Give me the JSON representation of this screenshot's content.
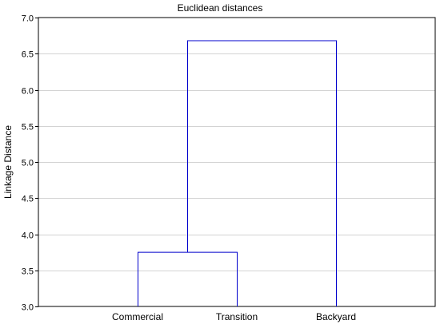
{
  "chart_data": {
    "type": "dendrogram",
    "title": "Euclidean distances",
    "ylabel": "Linkage Distance",
    "xlabel": "",
    "ylim": [
      3.0,
      7.0
    ],
    "yticks": [
      "3.0",
      "3.5",
      "4.0",
      "4.5",
      "5.0",
      "5.5",
      "6.0",
      "6.5",
      "7.0"
    ],
    "grid": true,
    "leaves": [
      "Commercial",
      "Transition",
      "Backyard"
    ],
    "merges": [
      {
        "left": "Commercial",
        "right": "Transition",
        "distance": 3.75
      },
      {
        "left": "Commercial+Transition",
        "right": "Backyard",
        "distance": 6.68
      }
    ],
    "colors": {
      "lines": "#0000cc",
      "grid": "#d3d3d3",
      "axis": "#000000"
    }
  }
}
